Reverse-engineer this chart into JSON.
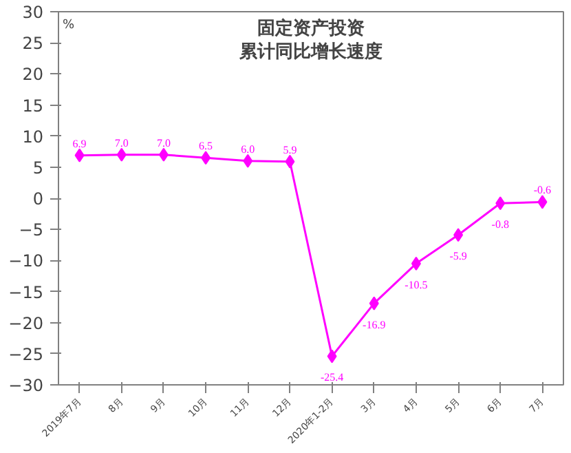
{
  "chart_data": {
    "type": "line",
    "title": "固定资产投资",
    "subtitle": "累计同比增长速度",
    "ylabel": "%",
    "categories": [
      "2019年7月",
      "8月",
      "9月",
      "10月",
      "11月",
      "12月",
      "2020年1-2月",
      "3月",
      "4月",
      "5月",
      "6月",
      "7月"
    ],
    "series": [
      {
        "color": "#ff00ff",
        "values": [
          6.9,
          7.0,
          7.0,
          6.5,
          6.0,
          5.9,
          -25.4,
          -16.9,
          -10.5,
          -5.9,
          -0.8,
          -0.6
        ],
        "value_labels": [
          "6.9",
          "7.0",
          "7.0",
          "6.5",
          "6.0",
          "5.9",
          "-25.4",
          "-16.9",
          "-10.5",
          "-5.9",
          "-0.8",
          "-0.6"
        ]
      }
    ],
    "ylim": [
      -30,
      30
    ],
    "yticks": [
      -30,
      -25,
      -20,
      -15,
      -10,
      -5,
      0,
      5,
      10,
      15,
      20,
      25,
      30
    ],
    "grid": false,
    "marker": "diamond",
    "line_style": "solid"
  }
}
